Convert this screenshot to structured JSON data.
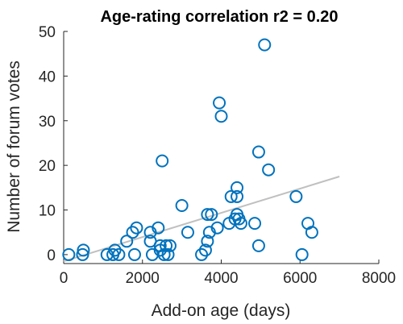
{
  "chart_data": {
    "type": "scatter",
    "title": "Age-rating correlation r2 = 0.20",
    "xlabel": "Add-on age (days)",
    "ylabel": "Number of forum votes",
    "xlim": [
      0,
      8000
    ],
    "ylim": [
      -2,
      50
    ],
    "xticks": [
      0,
      2000,
      4000,
      6000,
      8000
    ],
    "yticks": [
      0,
      10,
      20,
      30,
      40,
      50
    ],
    "xtick_labels": [
      "0",
      "2000",
      "4000",
      "6000",
      "8000"
    ],
    "ytick_labels": [
      "0",
      "10",
      "20",
      "30",
      "40",
      "50"
    ],
    "grid": false,
    "legend": "none",
    "colors": {
      "points": "#0072BD",
      "trend": "#c0c0c0",
      "axes": "#262626"
    },
    "points": [
      {
        "x": 130,
        "y": 0
      },
      {
        "x": 480,
        "y": 0
      },
      {
        "x": 500,
        "y": 1
      },
      {
        "x": 1100,
        "y": 0
      },
      {
        "x": 1250,
        "y": 0
      },
      {
        "x": 1300,
        "y": 1
      },
      {
        "x": 1400,
        "y": 0
      },
      {
        "x": 1600,
        "y": 3
      },
      {
        "x": 1750,
        "y": 5
      },
      {
        "x": 1800,
        "y": 0
      },
      {
        "x": 1850,
        "y": 6
      },
      {
        "x": 2200,
        "y": 3
      },
      {
        "x": 2200,
        "y": 5
      },
      {
        "x": 2250,
        "y": 0
      },
      {
        "x": 2400,
        "y": 6
      },
      {
        "x": 2450,
        "y": 1
      },
      {
        "x": 2450,
        "y": 2
      },
      {
        "x": 2500,
        "y": 21
      },
      {
        "x": 2550,
        "y": 0
      },
      {
        "x": 2600,
        "y": 2
      },
      {
        "x": 2650,
        "y": 0
      },
      {
        "x": 2700,
        "y": 2
      },
      {
        "x": 3000,
        "y": 11
      },
      {
        "x": 3150,
        "y": 5
      },
      {
        "x": 3500,
        "y": 0
      },
      {
        "x": 3600,
        "y": 1
      },
      {
        "x": 3650,
        "y": 3
      },
      {
        "x": 3650,
        "y": 9
      },
      {
        "x": 3700,
        "y": 5
      },
      {
        "x": 3750,
        "y": 9
      },
      {
        "x": 3900,
        "y": 6
      },
      {
        "x": 3950,
        "y": 34
      },
      {
        "x": 4000,
        "y": 31
      },
      {
        "x": 4200,
        "y": 7
      },
      {
        "x": 4250,
        "y": 13
      },
      {
        "x": 4350,
        "y": 8
      },
      {
        "x": 4400,
        "y": 9
      },
      {
        "x": 4400,
        "y": 13
      },
      {
        "x": 4400,
        "y": 15
      },
      {
        "x": 4450,
        "y": 8
      },
      {
        "x": 4500,
        "y": 7
      },
      {
        "x": 4850,
        "y": 7
      },
      {
        "x": 4950,
        "y": 2
      },
      {
        "x": 4950,
        "y": 23
      },
      {
        "x": 5100,
        "y": 47
      },
      {
        "x": 5200,
        "y": 19
      },
      {
        "x": 5900,
        "y": 13
      },
      {
        "x": 6050,
        "y": 0
      },
      {
        "x": 6200,
        "y": 7
      },
      {
        "x": 6300,
        "y": 5
      }
    ],
    "trendline": {
      "x": [
        0,
        7000
      ],
      "y": [
        -1.5,
        17.5
      ]
    }
  }
}
